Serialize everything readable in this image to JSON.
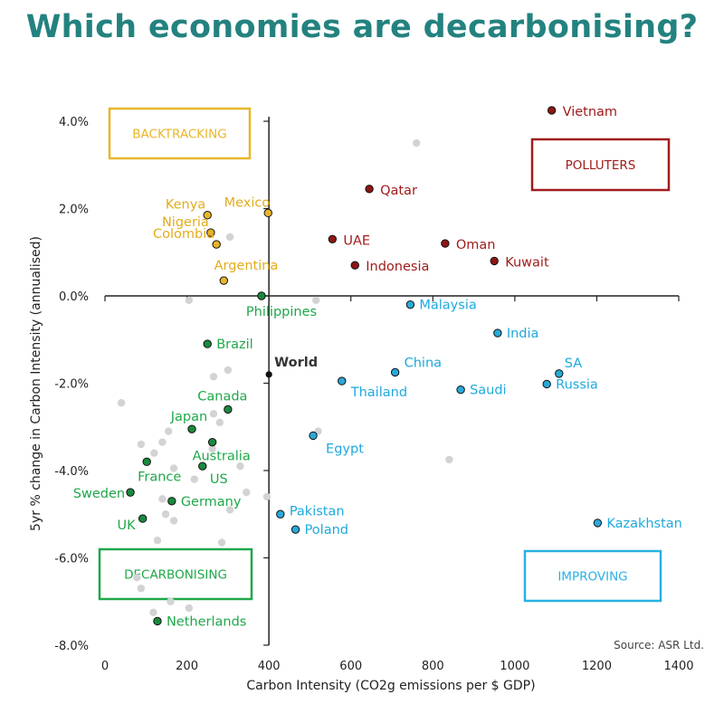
{
  "chart_data": {
    "type": "scatter",
    "title": "Which economies are decarbonising?",
    "xlabel": "Carbon Intensity (CO2g emissions per $ GDP)",
    "ylabel": "5yr % change in Carbon Intensity (annualised)",
    "xlim": [
      0,
      1400
    ],
    "ylim": [
      -8,
      4
    ],
    "x_ticks": [
      0,
      200,
      400,
      600,
      800,
      1000,
      1200,
      1400
    ],
    "x_tick_labels": [
      "0",
      "200",
      "400",
      "600",
      "800",
      "1000",
      "1200",
      "1400"
    ],
    "y_ticks": [
      4,
      2,
      0,
      -2,
      -4,
      -6,
      -8
    ],
    "y_tick_labels": [
      "4.0%",
      "2.0%",
      "0.0%",
      "-2.0%",
      "-4.0%",
      "-6.0%",
      "-8.0%"
    ],
    "source": "Source: ASR Ltd.",
    "colors": {
      "title": "#23827f",
      "backtracking": "#e9b62a",
      "polluters": "#a01c1c",
      "decarbonising": "#1fa84a",
      "improving": "#29b1e3",
      "world": "#333333",
      "unlabeled": "#d3d3d3"
    },
    "quadrants": [
      {
        "name": "backtracking",
        "label": "BACKTRACKING"
      },
      {
        "name": "polluters",
        "label": "POLLUTERS"
      },
      {
        "name": "decarbonising",
        "label": "DECARBONISING"
      },
      {
        "name": "improving",
        "label": "IMPROVING"
      }
    ],
    "points": [
      {
        "label": "Vietnam",
        "x": 1090,
        "y": 4.25,
        "group": "polluters",
        "anchor": "right"
      },
      {
        "label": "Qatar",
        "x": 645,
        "y": 2.45,
        "group": "polluters",
        "anchor": "right"
      },
      {
        "label": "UAE",
        "x": 555,
        "y": 1.3,
        "group": "polluters",
        "anchor": "right"
      },
      {
        "label": "Oman",
        "x": 830,
        "y": 1.2,
        "group": "polluters",
        "anchor": "right"
      },
      {
        "label": "Indonesia",
        "x": 610,
        "y": 0.7,
        "group": "polluters",
        "anchor": "right"
      },
      {
        "label": "Kuwait",
        "x": 950,
        "y": 0.8,
        "group": "polluters",
        "anchor": "right"
      },
      {
        "label": "Kenya",
        "x": 250,
        "y": 1.85,
        "group": "backtracking",
        "anchor": "left"
      },
      {
        "label": "Mexico",
        "x": 398,
        "y": 1.9,
        "group": "backtracking",
        "anchor": "left"
      },
      {
        "label": "Nigeria",
        "x": 258,
        "y": 1.45,
        "group": "backtracking",
        "anchor": "left"
      },
      {
        "label": "Colombia",
        "x": 272,
        "y": 1.18,
        "group": "backtracking",
        "anchor": "left"
      },
      {
        "label": "Argentina",
        "x": 290,
        "y": 0.35,
        "group": "backtracking",
        "anchor": "left"
      },
      {
        "label": "Philippines",
        "x": 382,
        "y": 0.0,
        "group": "decarbonising",
        "anchor": "below"
      },
      {
        "label": "Brazil",
        "x": 250,
        "y": -1.1,
        "group": "decarbonising",
        "anchor": "right"
      },
      {
        "label": "Canada",
        "x": 300,
        "y": -2.6,
        "group": "decarbonising",
        "anchor": "above"
      },
      {
        "label": "Japan",
        "x": 212,
        "y": -3.05,
        "group": "decarbonising",
        "anchor": "above"
      },
      {
        "label": "Australia",
        "x": 262,
        "y": -3.35,
        "group": "decarbonising",
        "anchor": "below"
      },
      {
        "label": "France",
        "x": 102,
        "y": -3.8,
        "group": "decarbonising",
        "anchor": "below"
      },
      {
        "label": "US",
        "x": 238,
        "y": -3.9,
        "group": "decarbonising",
        "anchor": "below"
      },
      {
        "label": "Sweden",
        "x": 62,
        "y": -4.5,
        "group": "decarbonising",
        "anchor": "left"
      },
      {
        "label": "Germany",
        "x": 163,
        "y": -4.7,
        "group": "decarbonising",
        "anchor": "right"
      },
      {
        "label": "UK",
        "x": 92,
        "y": -5.1,
        "group": "decarbonising",
        "anchor": "left"
      },
      {
        "label": "Netherlands",
        "x": 128,
        "y": -7.45,
        "group": "decarbonising",
        "anchor": "right"
      },
      {
        "label": "World",
        "x": 400,
        "y": -1.8,
        "group": "world",
        "anchor": "above"
      },
      {
        "label": "Malaysia",
        "x": 745,
        "y": -0.2,
        "group": "improving",
        "anchor": "right"
      },
      {
        "label": "India",
        "x": 958,
        "y": -0.85,
        "group": "improving",
        "anchor": "right"
      },
      {
        "label": "China",
        "x": 708,
        "y": -1.75,
        "group": "improving",
        "anchor": "above"
      },
      {
        "label": "SA",
        "x": 1108,
        "y": -1.78,
        "group": "improving",
        "anchor": "above"
      },
      {
        "label": "Russia",
        "x": 1078,
        "y": -2.02,
        "group": "improving",
        "anchor": "right"
      },
      {
        "label": "Thailand",
        "x": 578,
        "y": -1.95,
        "group": "improving",
        "anchor": "below"
      },
      {
        "label": "Saudi",
        "x": 868,
        "y": -2.15,
        "group": "improving",
        "anchor": "right"
      },
      {
        "label": "Egypt",
        "x": 508,
        "y": -3.2,
        "group": "improving",
        "anchor": "below"
      },
      {
        "label": "Pakistan",
        "x": 428,
        "y": -5.0,
        "group": "improving",
        "anchor": "above"
      },
      {
        "label": "Poland",
        "x": 465,
        "y": -5.35,
        "group": "improving",
        "anchor": "right"
      },
      {
        "label": "Kazakhstan",
        "x": 1202,
        "y": -5.2,
        "group": "improving",
        "anchor": "right"
      }
    ],
    "unlabeled_points": [
      {
        "x": 760,
        "y": 3.5
      },
      {
        "x": 305,
        "y": 1.35
      },
      {
        "x": 205,
        "y": -0.1
      },
      {
        "x": 515,
        "y": -0.1
      },
      {
        "x": 300,
        "y": -1.7
      },
      {
        "x": 265,
        "y": -1.85
      },
      {
        "x": 40,
        "y": -2.45
      },
      {
        "x": 265,
        "y": -2.7
      },
      {
        "x": 280,
        "y": -2.9
      },
      {
        "x": 155,
        "y": -3.1
      },
      {
        "x": 520,
        "y": -3.1
      },
      {
        "x": 88,
        "y": -3.4
      },
      {
        "x": 140,
        "y": -3.35
      },
      {
        "x": 120,
        "y": -3.6
      },
      {
        "x": 262,
        "y": -3.5
      },
      {
        "x": 168,
        "y": -3.95
      },
      {
        "x": 330,
        "y": -3.9
      },
      {
        "x": 840,
        "y": -3.75
      },
      {
        "x": 218,
        "y": -4.2
      },
      {
        "x": 345,
        "y": -4.5
      },
      {
        "x": 140,
        "y": -4.65
      },
      {
        "x": 395,
        "y": -4.6
      },
      {
        "x": 148,
        "y": -5.0
      },
      {
        "x": 168,
        "y": -5.15
      },
      {
        "x": 305,
        "y": -4.9
      },
      {
        "x": 128,
        "y": -5.6
      },
      {
        "x": 285,
        "y": -5.65
      },
      {
        "x": 78,
        "y": -6.45
      },
      {
        "x": 88,
        "y": -6.7
      },
      {
        "x": 160,
        "y": -7.0
      },
      {
        "x": 118,
        "y": -7.25
      },
      {
        "x": 205,
        "y": -7.15
      }
    ]
  }
}
